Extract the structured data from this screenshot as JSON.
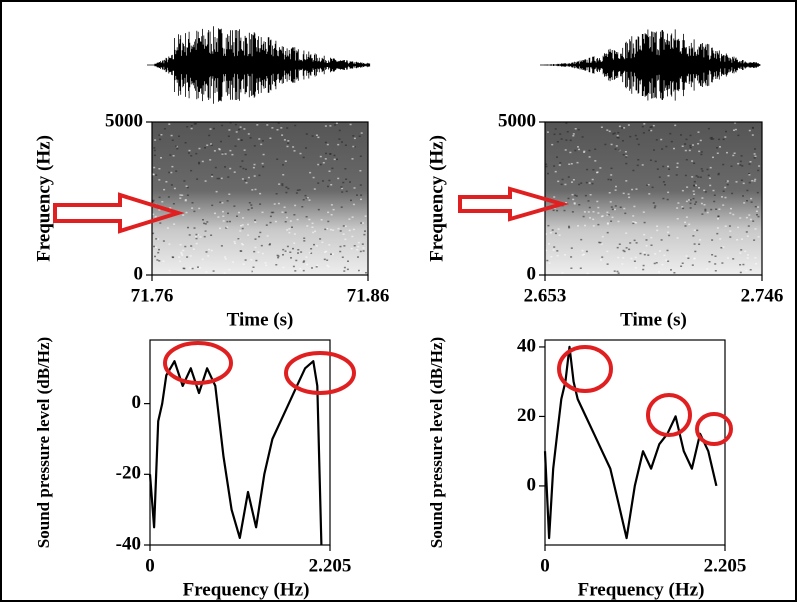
{
  "chart_data": [
    {
      "type": "spectrogram",
      "xlabel": "Time (s)",
      "ylabel": "Frequency (Hz)",
      "xlim": [
        71.76,
        71.86
      ],
      "xticks": [
        71.76,
        71.86
      ],
      "ylim": [
        0,
        5000
      ],
      "yticks": [
        0,
        5000
      ]
    },
    {
      "type": "spectrogram",
      "xlabel": "Time (s)",
      "ylabel": "Frequency (Hz)",
      "xlim": [
        2.653,
        2.746
      ],
      "xticks": [
        2.653,
        2.746
      ],
      "ylim": [
        0,
        5000
      ],
      "yticks": [
        0,
        5000
      ]
    },
    {
      "type": "line",
      "xlabel": "Frequency (Hz)",
      "ylabel": "Sound pressure level (dB/Hz)",
      "xlim": [
        0,
        2.205
      ],
      "xticks": [
        0,
        2.205
      ],
      "ylim": [
        -40,
        18
      ],
      "yticks": [
        -40,
        -20,
        0
      ],
      "x": [
        0,
        0.05,
        0.1,
        0.15,
        0.2,
        0.3,
        0.4,
        0.5,
        0.6,
        0.7,
        0.8,
        0.9,
        1.0,
        1.1,
        1.2,
        1.3,
        1.4,
        1.5,
        1.6,
        1.7,
        1.8,
        1.9,
        2.0,
        2.05,
        2.1
      ],
      "y": [
        -20,
        -35,
        -5,
        0,
        8,
        12,
        5,
        10,
        3,
        10,
        5,
        -15,
        -30,
        -38,
        -25,
        -35,
        -20,
        -10,
        -5,
        0,
        5,
        10,
        12,
        5,
        -40
      ]
    },
    {
      "type": "line",
      "xlabel": "Frequency (Hz)",
      "ylabel": "Sound pressure level (dB/Hz)",
      "xlim": [
        0,
        2.205
      ],
      "xticks": [
        0,
        2.205
      ],
      "ylim": [
        -17,
        42
      ],
      "yticks": [
        0,
        20,
        40
      ],
      "x": [
        0,
        0.05,
        0.1,
        0.15,
        0.2,
        0.25,
        0.3,
        0.35,
        0.4,
        0.5,
        0.6,
        0.7,
        0.8,
        0.9,
        1.0,
        1.1,
        1.2,
        1.3,
        1.4,
        1.5,
        1.6,
        1.7,
        1.8,
        1.9,
        2.0,
        2.1
      ],
      "y": [
        10,
        -15,
        5,
        15,
        25,
        30,
        40,
        30,
        25,
        20,
        15,
        10,
        5,
        -5,
        -15,
        0,
        10,
        5,
        12,
        15,
        20,
        10,
        5,
        15,
        10,
        0
      ]
    }
  ]
}
